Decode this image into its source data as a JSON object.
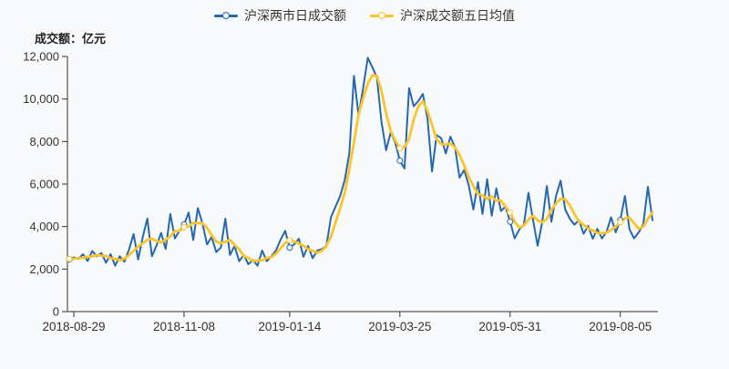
{
  "page": {
    "background": "#f8f9fa"
  },
  "legend": {
    "items": [
      {
        "label": "沪深两市日成交额",
        "color": "#2668b0"
      },
      {
        "label": "沪深成交额五日均值",
        "color": "#fdc32b"
      }
    ]
  },
  "chart_data": {
    "type": "line",
    "title": "",
    "y_axis_title": "成交额：亿元",
    "xlabel": "",
    "ylabel": "成交额（亿元）",
    "ylim": [
      0,
      12000
    ],
    "y_ticks": [
      "0",
      "2,000",
      "4,000",
      "6,000",
      "8,000",
      "10,000",
      "12,000"
    ],
    "x_tick_labels": [
      "2018-08-29",
      "2018-11-08",
      "2019-01-14",
      "2019-03-25",
      "2019-05-31",
      "2019-08-05"
    ],
    "x_tick_indices": [
      1,
      25,
      48,
      72,
      96,
      120
    ],
    "marker_indices": [
      0,
      25,
      48,
      72,
      96,
      120
    ],
    "grid": false,
    "legend_position": "top",
    "axis_color": "#333333",
    "label_color": "#333333",
    "series": [
      {
        "name": "沪深两市日成交额",
        "color": "#2668b0",
        "values": [
          2450,
          2550,
          2480,
          2700,
          2380,
          2850,
          2600,
          2750,
          2300,
          2700,
          2160,
          2600,
          2350,
          2900,
          3650,
          2450,
          3500,
          4370,
          2600,
          3100,
          3700,
          2950,
          4590,
          3440,
          3800,
          4100,
          4660,
          3370,
          4870,
          4160,
          3160,
          3510,
          2800,
          3010,
          4370,
          2660,
          3090,
          2370,
          2660,
          2230,
          2430,
          2160,
          2870,
          2370,
          2600,
          2870,
          3370,
          3800,
          3010,
          3170,
          3430,
          2580,
          3090,
          2510,
          2870,
          2940,
          3090,
          4440,
          4940,
          5440,
          6200,
          7460,
          11090,
          9230,
          10510,
          11940,
          11500,
          11010,
          8900,
          7590,
          8440,
          7940,
          7100,
          6730,
          10510,
          9660,
          9900,
          10240,
          9090,
          6590,
          8300,
          8160,
          7440,
          8230,
          7730,
          6300,
          6660,
          5940,
          4800,
          6090,
          4590,
          6230,
          4510,
          5800,
          4730,
          4940,
          4230,
          3440,
          3870,
          4090,
          5590,
          4300,
          3100,
          4230,
          5900,
          4230,
          5440,
          6160,
          4800,
          4370,
          4090,
          4300,
          3660,
          4030,
          3430,
          3890,
          3440,
          3740,
          4440,
          3730,
          4300,
          5440,
          3870,
          3440,
          3730,
          4100,
          5870,
          4300
        ]
      },
      {
        "name": "沪深成交额五日均值",
        "color": "#fdc32b",
        "derived": "5-day rolling mean of series 0"
      }
    ]
  }
}
